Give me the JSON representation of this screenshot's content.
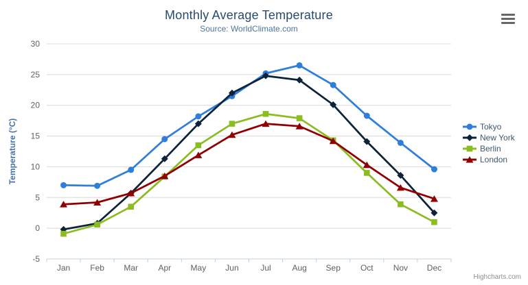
{
  "header": {
    "title": "Monthly Average Temperature",
    "subtitle": "Source: WorldClimate.com"
  },
  "export_menu": {
    "icon": "hamburger-menu-icon"
  },
  "credits": {
    "label": "Highcharts.com"
  },
  "chart_data": {
    "type": "line",
    "title": "Monthly Average Temperature",
    "subtitle": "Source: WorldClimate.com",
    "categories": [
      "Jan",
      "Feb",
      "Mar",
      "Apr",
      "May",
      "Jun",
      "Jul",
      "Aug",
      "Sep",
      "Oct",
      "Nov",
      "Dec"
    ],
    "series": [
      {
        "name": "Tokyo",
        "symbol": "circle",
        "color": "#2f7ed8",
        "values": [
          7.0,
          6.9,
          9.5,
          14.5,
          18.2,
          21.5,
          25.2,
          26.5,
          23.3,
          18.3,
          13.9,
          9.6
        ]
      },
      {
        "name": "New York",
        "symbol": "diamond",
        "color": "#0d233a",
        "values": [
          -0.2,
          0.8,
          5.7,
          11.3,
          17.0,
          22.0,
          24.8,
          24.1,
          20.1,
          14.1,
          8.6,
          2.5
        ]
      },
      {
        "name": "Berlin",
        "symbol": "square",
        "color": "#8bbc21",
        "values": [
          -0.9,
          0.6,
          3.5,
          8.4,
          13.5,
          17.0,
          18.6,
          17.9,
          14.3,
          9.0,
          3.9,
          1.0
        ]
      },
      {
        "name": "London",
        "symbol": "triangle",
        "color": "#910000",
        "values": [
          3.9,
          4.2,
          5.7,
          8.5,
          11.9,
          15.2,
          17.0,
          16.6,
          14.2,
          10.3,
          6.6,
          4.8
        ]
      }
    ],
    "xlabel": "",
    "ylabel": "Temperature (°C)",
    "ylim": [
      -5,
      30
    ],
    "ytick_interval": 5,
    "grid": true,
    "legend_position": "right",
    "grid_color": "#D8D8D8",
    "axis_line_color": "#C0D0E0",
    "axis_label_color": "#606060",
    "axis_title_color": "#4572A7"
  }
}
